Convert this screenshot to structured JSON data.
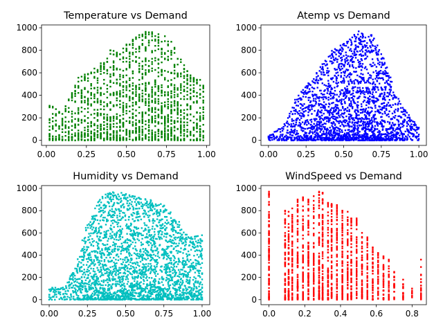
{
  "chart_data": [
    {
      "type": "scatter",
      "title": "Temperature vs Demand",
      "xlabel": "",
      "ylabel": "",
      "xlim": [
        -0.03,
        1.02
      ],
      "ylim": [
        -45,
        1025
      ],
      "x_ticks": [
        0.0,
        0.25,
        0.5,
        0.75,
        1.0
      ],
      "x_tick_labels": [
        "0.00",
        "0.25",
        "0.50",
        "0.75",
        "1.00"
      ],
      "y_ticks": [
        0,
        200,
        400,
        600,
        800,
        1000
      ],
      "y_tick_labels": [
        "0",
        "200",
        "400",
        "600",
        "800",
        "1000"
      ],
      "color": "#008000",
      "pattern": "vertical_strips",
      "x_range": [
        0.02,
        0.98
      ],
      "x_step": 0.02,
      "envelope": [
        [
          0.02,
          320
        ],
        [
          0.1,
          240
        ],
        [
          0.2,
          560
        ],
        [
          0.3,
          640
        ],
        [
          0.4,
          800
        ],
        [
          0.5,
          860
        ],
        [
          0.6,
          960
        ],
        [
          0.65,
          975
        ],
        [
          0.7,
          960
        ],
        [
          0.78,
          900
        ],
        [
          0.85,
          700
        ],
        [
          0.9,
          600
        ],
        [
          0.97,
          530
        ]
      ],
      "grid": false,
      "legend": "none"
    },
    {
      "type": "scatter",
      "title": "Atemp vs Demand",
      "xlabel": "",
      "ylabel": "",
      "xlim": [
        -0.05,
        1.05
      ],
      "ylim": [
        -45,
        1025
      ],
      "x_ticks": [
        0.0,
        0.25,
        0.5,
        0.75,
        1.0
      ],
      "x_tick_labels": [
        "0.00",
        "0.25",
        "0.50",
        "0.75",
        "1.00"
      ],
      "y_ticks": [
        0,
        200,
        400,
        600,
        800,
        1000
      ],
      "y_tick_labels": [
        "0",
        "200",
        "400",
        "600",
        "800",
        "1000"
      ],
      "color": "#0000ff",
      "pattern": "dense_cloud",
      "x_range": [
        0.0,
        1.0
      ],
      "x_step": 0.01,
      "envelope": [
        [
          0.0,
          40
        ],
        [
          0.1,
          130
        ],
        [
          0.2,
          420
        ],
        [
          0.3,
          560
        ],
        [
          0.4,
          780
        ],
        [
          0.5,
          860
        ],
        [
          0.6,
          970
        ],
        [
          0.65,
          960
        ],
        [
          0.7,
          930
        ],
        [
          0.78,
          700
        ],
        [
          0.85,
          400
        ],
        [
          0.92,
          250
        ],
        [
          1.0,
          120
        ]
      ],
      "grid": false,
      "legend": "none"
    },
    {
      "type": "scatter",
      "title": "Humidity vs Demand",
      "xlabel": "",
      "ylabel": "",
      "xlim": [
        -0.05,
        1.05
      ],
      "ylim": [
        -45,
        1025
      ],
      "x_ticks": [
        0.0,
        0.25,
        0.5,
        0.75,
        1.0
      ],
      "x_tick_labels": [
        "0.00",
        "0.25",
        "0.50",
        "0.75",
        "1.00"
      ],
      "y_ticks": [
        0,
        200,
        400,
        600,
        800,
        1000
      ],
      "y_tick_labels": [
        "0",
        "200",
        "400",
        "600",
        "800",
        "1000"
      ],
      "color": "#00bfbf",
      "pattern": "dense_cloud",
      "x_range": [
        0.0,
        1.0
      ],
      "x_step": 0.01,
      "envelope": [
        [
          0.0,
          110
        ],
        [
          0.1,
          110
        ],
        [
          0.18,
          320
        ],
        [
          0.25,
          700
        ],
        [
          0.35,
          960
        ],
        [
          0.45,
          970
        ],
        [
          0.55,
          930
        ],
        [
          0.65,
          900
        ],
        [
          0.75,
          850
        ],
        [
          0.85,
          700
        ],
        [
          0.92,
          560
        ],
        [
          1.0,
          580
        ]
      ],
      "grid": false,
      "legend": "none"
    },
    {
      "type": "scatter",
      "title": "WindSpeed vs Demand",
      "xlabel": "",
      "ylabel": "",
      "xlim": [
        -0.045,
        0.88
      ],
      "ylim": [
        -45,
        1025
      ],
      "x_ticks": [
        0.0,
        0.2,
        0.4,
        0.6,
        0.8
      ],
      "x_tick_labels": [
        "0.0",
        "0.2",
        "0.4",
        "0.6",
        "0.8"
      ],
      "y_ticks": [
        0,
        200,
        400,
        600,
        800,
        1000
      ],
      "y_tick_labels": [
        "0",
        "200",
        "400",
        "600",
        "800",
        "1000"
      ],
      "color": "#ff0000",
      "pattern": "vertical_strips",
      "x_values": [
        0.0,
        0.09,
        0.11,
        0.13,
        0.16,
        0.19,
        0.22,
        0.25,
        0.28,
        0.3,
        0.33,
        0.35,
        0.38,
        0.41,
        0.44,
        0.46,
        0.49,
        0.52,
        0.55,
        0.58,
        0.61,
        0.64,
        0.67,
        0.7,
        0.75,
        0.8,
        0.85
      ],
      "x_max_demand": [
        970,
        800,
        790,
        820,
        900,
        920,
        900,
        930,
        970,
        960,
        870,
        860,
        850,
        800,
        790,
        730,
        730,
        600,
        560,
        470,
        420,
        390,
        360,
        250,
        180,
        100,
        360
      ],
      "grid": false,
      "legend": "none"
    }
  ]
}
